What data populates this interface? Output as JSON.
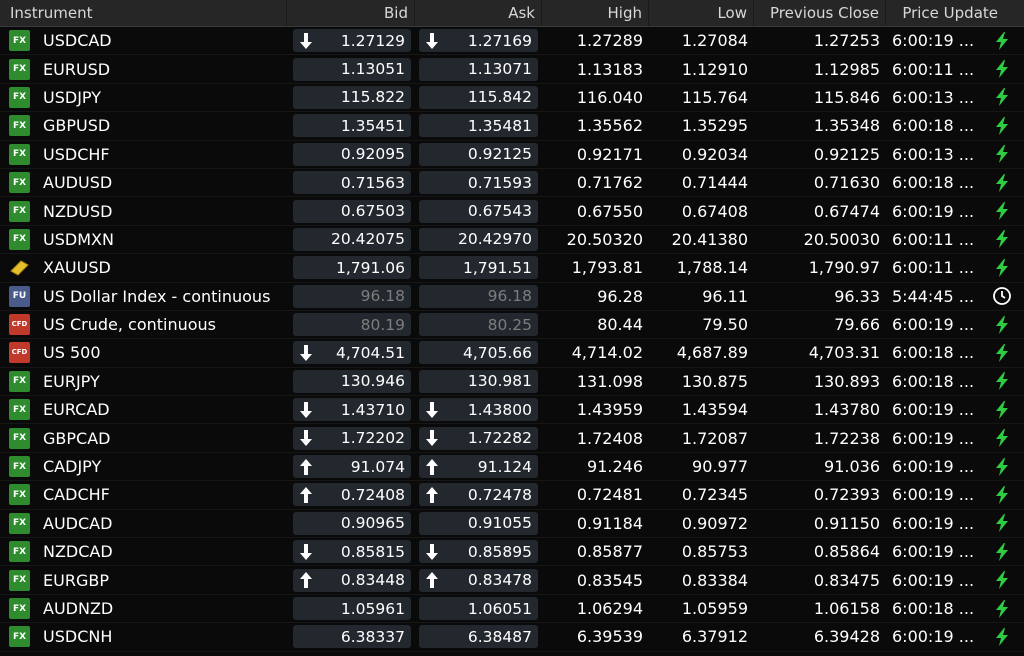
{
  "headers": {
    "instrument": "Instrument",
    "bid": "Bid",
    "ask": "Ask",
    "high": "High",
    "low": "Low",
    "prev_close": "Previous Close",
    "price_update": "Price Update"
  },
  "colors": {
    "fx_badge": "#2e8b2e",
    "bolt": "#2ecc40",
    "stale_text": "#7d7d7d",
    "price_box": "#23282e"
  },
  "rows": [
    {
      "badge": "FX",
      "badge_type": "fx",
      "name": "USDCAD",
      "bid": "1.27129",
      "bid_dir": "down",
      "ask": "1.27169",
      "ask_dir": "down",
      "high": "1.27289",
      "low": "1.27084",
      "prev": "1.27253",
      "update": "6:00:19 ...",
      "icon": "bolt"
    },
    {
      "badge": "FX",
      "badge_type": "fx",
      "name": "EURUSD",
      "bid": "1.13051",
      "bid_dir": "",
      "ask": "1.13071",
      "ask_dir": "",
      "high": "1.13183",
      "low": "1.12910",
      "prev": "1.12985",
      "update": "6:00:11 ...",
      "icon": "bolt"
    },
    {
      "badge": "FX",
      "badge_type": "fx",
      "name": "USDJPY",
      "bid": "115.822",
      "bid_dir": "",
      "ask": "115.842",
      "ask_dir": "",
      "high": "116.040",
      "low": "115.764",
      "prev": "115.846",
      "update": "6:00:13 ...",
      "icon": "bolt"
    },
    {
      "badge": "FX",
      "badge_type": "fx",
      "name": "GBPUSD",
      "bid": "1.35451",
      "bid_dir": "",
      "ask": "1.35481",
      "ask_dir": "",
      "high": "1.35562",
      "low": "1.35295",
      "prev": "1.35348",
      "update": "6:00:18 ...",
      "icon": "bolt"
    },
    {
      "badge": "FX",
      "badge_type": "fx",
      "name": "USDCHF",
      "bid": "0.92095",
      "bid_dir": "",
      "ask": "0.92125",
      "ask_dir": "",
      "high": "0.92171",
      "low": "0.92034",
      "prev": "0.92125",
      "update": "6:00:13 ...",
      "icon": "bolt"
    },
    {
      "badge": "FX",
      "badge_type": "fx",
      "name": "AUDUSD",
      "bid": "0.71563",
      "bid_dir": "",
      "ask": "0.71593",
      "ask_dir": "",
      "high": "0.71762",
      "low": "0.71444",
      "prev": "0.71630",
      "update": "6:00:18 ...",
      "icon": "bolt"
    },
    {
      "badge": "FX",
      "badge_type": "fx",
      "name": "NZDUSD",
      "bid": "0.67503",
      "bid_dir": "",
      "ask": "0.67543",
      "ask_dir": "",
      "high": "0.67550",
      "low": "0.67408",
      "prev": "0.67474",
      "update": "6:00:19 ...",
      "icon": "bolt"
    },
    {
      "badge": "FX",
      "badge_type": "fx",
      "name": "USDMXN",
      "bid": "20.42075",
      "bid_dir": "",
      "ask": "20.42970",
      "ask_dir": "",
      "high": "20.50320",
      "low": "20.41380",
      "prev": "20.50030",
      "update": "6:00:11 ...",
      "icon": "bolt"
    },
    {
      "badge": "",
      "badge_type": "gold",
      "name": "XAUUSD",
      "bid": "1,791.06",
      "bid_dir": "",
      "ask": "1,791.51",
      "ask_dir": "",
      "high": "1,793.81",
      "low": "1,788.14",
      "prev": "1,790.97",
      "update": "6:00:11 ...",
      "icon": "bolt"
    },
    {
      "badge": "FU",
      "badge_type": "fu",
      "name": "US Dollar Index - continuous",
      "bid": "96.18",
      "bid_dir": "",
      "ask": "96.18",
      "ask_dir": "",
      "high": "96.28",
      "low": "96.11",
      "prev": "96.33",
      "update": "5:44:45 ...",
      "icon": "clock",
      "stale": true
    },
    {
      "badge": "CFD",
      "badge_type": "cfd",
      "name": "US Crude, continuous",
      "bid": "80.19",
      "bid_dir": "",
      "ask": "80.25",
      "ask_dir": "",
      "high": "80.44",
      "low": "79.50",
      "prev": "79.66",
      "update": "6:00:19 ...",
      "icon": "bolt",
      "stale": true
    },
    {
      "badge": "CFD",
      "badge_type": "cfd",
      "name": "US 500",
      "bid": "4,704.51",
      "bid_dir": "down",
      "ask": "4,705.66",
      "ask_dir": "",
      "high": "4,714.02",
      "low": "4,687.89",
      "prev": "4,703.31",
      "update": "6:00:18 ...",
      "icon": "bolt"
    },
    {
      "badge": "FX",
      "badge_type": "fx",
      "name": "EURJPY",
      "bid": "130.946",
      "bid_dir": "",
      "ask": "130.981",
      "ask_dir": "",
      "high": "131.098",
      "low": "130.875",
      "prev": "130.893",
      "update": "6:00:18 ...",
      "icon": "bolt"
    },
    {
      "badge": "FX",
      "badge_type": "fx",
      "name": "EURCAD",
      "bid": "1.43710",
      "bid_dir": "down",
      "ask": "1.43800",
      "ask_dir": "down",
      "high": "1.43959",
      "low": "1.43594",
      "prev": "1.43780",
      "update": "6:00:19 ...",
      "icon": "bolt"
    },
    {
      "badge": "FX",
      "badge_type": "fx",
      "name": "GBPCAD",
      "bid": "1.72202",
      "bid_dir": "down",
      "ask": "1.72282",
      "ask_dir": "down",
      "high": "1.72408",
      "low": "1.72087",
      "prev": "1.72238",
      "update": "6:00:19 ...",
      "icon": "bolt"
    },
    {
      "badge": "FX",
      "badge_type": "fx",
      "name": "CADJPY",
      "bid": "91.074",
      "bid_dir": "up",
      "ask": "91.124",
      "ask_dir": "up",
      "high": "91.246",
      "low": "90.977",
      "prev": "91.036",
      "update": "6:00:19 ...",
      "icon": "bolt"
    },
    {
      "badge": "FX",
      "badge_type": "fx",
      "name": "CADCHF",
      "bid": "0.72408",
      "bid_dir": "up",
      "ask": "0.72478",
      "ask_dir": "up",
      "high": "0.72481",
      "low": "0.72345",
      "prev": "0.72393",
      "update": "6:00:19 ...",
      "icon": "bolt"
    },
    {
      "badge": "FX",
      "badge_type": "fx",
      "name": "AUDCAD",
      "bid": "0.90965",
      "bid_dir": "",
      "ask": "0.91055",
      "ask_dir": "",
      "high": "0.91184",
      "low": "0.90972",
      "prev": "0.91150",
      "update": "6:00:19 ...",
      "icon": "bolt"
    },
    {
      "badge": "FX",
      "badge_type": "fx",
      "name": "NZDCAD",
      "bid": "0.85815",
      "bid_dir": "down",
      "ask": "0.85895",
      "ask_dir": "down",
      "high": "0.85877",
      "low": "0.85753",
      "prev": "0.85864",
      "update": "6:00:19 ...",
      "icon": "bolt"
    },
    {
      "badge": "FX",
      "badge_type": "fx",
      "name": "EURGBP",
      "bid": "0.83448",
      "bid_dir": "up",
      "ask": "0.83478",
      "ask_dir": "up",
      "high": "0.83545",
      "low": "0.83384",
      "prev": "0.83475",
      "update": "6:00:19 ...",
      "icon": "bolt"
    },
    {
      "badge": "FX",
      "badge_type": "fx",
      "name": "AUDNZD",
      "bid": "1.05961",
      "bid_dir": "",
      "ask": "1.06051",
      "ask_dir": "",
      "high": "1.06294",
      "low": "1.05959",
      "prev": "1.06158",
      "update": "6:00:18 ...",
      "icon": "bolt"
    },
    {
      "badge": "FX",
      "badge_type": "fx",
      "name": "USDCNH",
      "bid": "6.38337",
      "bid_dir": "",
      "ask": "6.38487",
      "ask_dir": "",
      "high": "6.39539",
      "low": "6.37912",
      "prev": "6.39428",
      "update": "6:00:19 ...",
      "icon": "bolt"
    }
  ]
}
